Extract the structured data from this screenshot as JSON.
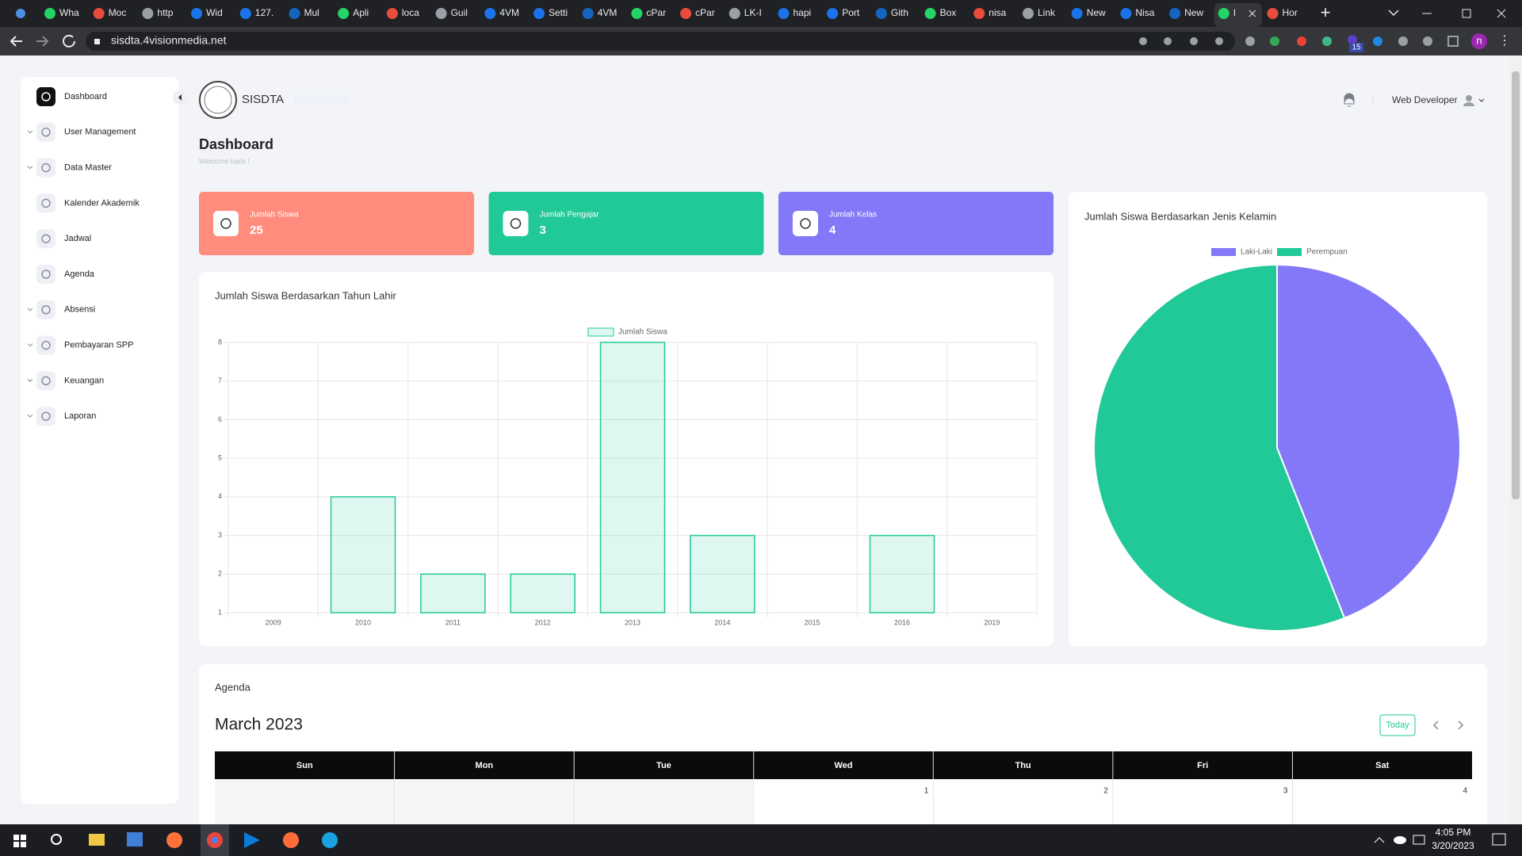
{
  "browser": {
    "tabs": [
      "Wha",
      "Moc",
      "http",
      "Wid",
      "127.",
      "Mul",
      "Apli",
      "loca",
      "Guil",
      "4VM",
      "Setti",
      "4VM",
      "cPar",
      "cPar",
      "LK-I",
      "hapi",
      "Port",
      "Gith",
      "Box",
      "nisa",
      "Link",
      "New",
      "Nisa",
      "New",
      "I",
      "Hor"
    ],
    "active_tab": 24,
    "url": "sisdta.4visionmedia.net",
    "extension_badge": "15",
    "profile": "n"
  },
  "sidebar": {
    "items": [
      {
        "label": "Dashboard",
        "expandable": false
      },
      {
        "label": "User Management",
        "expandable": true
      },
      {
        "label": "Data Master",
        "expandable": true
      },
      {
        "label": "Kalender Akademik",
        "expandable": false
      },
      {
        "label": "Jadwal",
        "expandable": false
      },
      {
        "label": "Agenda",
        "expandable": false
      },
      {
        "label": "Absensi",
        "expandable": true
      },
      {
        "label": "Pembayaran SPP",
        "expandable": true
      },
      {
        "label": "Keuangan",
        "expandable": true
      },
      {
        "label": "Laporan",
        "expandable": true
      }
    ]
  },
  "header": {
    "brand": "SISDTA",
    "breadcrumb": "Dashboard",
    "user": "Web Developer"
  },
  "page": {
    "title": "Dashboard",
    "subtitle": "Welcome back !"
  },
  "cards": [
    {
      "label": "Jumlah Siswa",
      "value": 25,
      "color": "#ff8c7c"
    },
    {
      "label": "Jumlah Pengajar",
      "value": 3,
      "color": "#20c997"
    },
    {
      "label": "Jumlah Kelas",
      "value": 4,
      "color": "#8378f8"
    }
  ],
  "chart_data": [
    {
      "type": "bar",
      "title": "Jumlah Siswa Berdasarkan Tahun Lahir",
      "categories": [
        "2009",
        "2010",
        "2011",
        "2012",
        "2013",
        "2014",
        "2015",
        "2016",
        "2019"
      ],
      "series": [
        {
          "name": "Jumlah Siswa",
          "color": "#20c997",
          "values": [
            1,
            4,
            2,
            2,
            8,
            3,
            1,
            3,
            1
          ]
        }
      ],
      "ylim": [
        1,
        8
      ],
      "yticks": [
        1,
        2,
        3,
        4,
        5,
        6,
        7,
        8
      ],
      "grid": true
    },
    {
      "type": "pie",
      "title": "Jumlah Siswa Berdasarkan Jenis Kelamin",
      "categories": [
        "Laki-Laki",
        "Perempuan"
      ],
      "values": [
        11,
        14
      ],
      "colors": [
        "#8378f8",
        "#20c997"
      ]
    }
  ],
  "agenda": {
    "title": "Agenda",
    "month": "March 2023",
    "today": "Today",
    "weekdays": [
      "Sun",
      "Mon",
      "Tue",
      "Wed",
      "Thu",
      "Fri",
      "Sat"
    ],
    "days": [
      null,
      null,
      null,
      1,
      2,
      3,
      4
    ]
  },
  "taskbar": {
    "time": "4:05 PM",
    "date": "3/20/2023"
  }
}
